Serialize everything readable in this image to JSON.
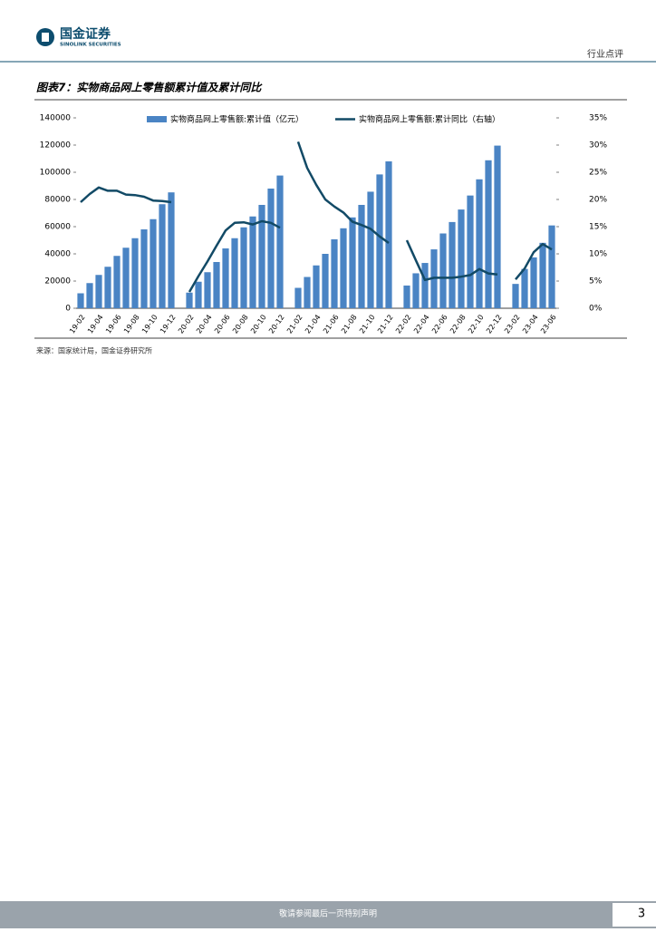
{
  "header": {
    "logo_cn": "国金证券",
    "logo_en": "SINOLINK SECURITIES",
    "section": "行业点评"
  },
  "figure": {
    "title": "图表7：实物商品网上零售额累计值及累计同比",
    "source": "来源：国家统计局，国金证券研究所"
  },
  "chart_data": {
    "type": "combo",
    "legend": "top",
    "categories": [
      "19-02",
      null,
      "19-04",
      null,
      "19-06",
      null,
      "19-08",
      null,
      "19-10",
      null,
      "19-12",
      null,
      "20-02",
      null,
      "20-04",
      null,
      "20-06",
      null,
      "20-08",
      null,
      "20-10",
      null,
      "20-12",
      null,
      "21-02",
      null,
      "21-04",
      null,
      "21-06",
      null,
      "21-08",
      null,
      "21-10",
      null,
      "21-12",
      null,
      "22-02",
      null,
      "22-04",
      null,
      "22-06",
      null,
      "22-08",
      null,
      "22-10",
      null,
      "22-12",
      null,
      "23-02",
      null,
      "23-04",
      null,
      "23-06"
    ],
    "series": [
      {
        "name": "实物商品网上零售额:累计值（亿元）",
        "type": "bar",
        "color": "#4a84c4",
        "values": [
          11000,
          18500,
          24500,
          30500,
          38500,
          44500,
          51500,
          58000,
          65500,
          76500,
          85200,
          null,
          11500,
          19500,
          26500,
          34000,
          44000,
          51500,
          59500,
          67500,
          76000,
          88000,
          97600,
          null,
          15000,
          23000,
          31500,
          40000,
          50700,
          58800,
          66800,
          76000,
          85700,
          98400,
          108000,
          null,
          16700,
          25700,
          33300,
          43300,
          55000,
          63400,
          72600,
          82900,
          94800,
          108800,
          119600,
          null,
          17900,
          28900,
          37400,
          48100,
          60900
        ]
      },
      {
        "name": "实物商品网上零售额:累计同比（右轴）",
        "type": "line",
        "axis": "y2",
        "color": "#124a66",
        "values": [
          19.5,
          21,
          22.2,
          21.6,
          21.6,
          20.9,
          20.8,
          20.5,
          19.8,
          19.7,
          19.5,
          null,
          3,
          5.9,
          8.6,
          11.5,
          14.3,
          15.7,
          15.8,
          15.4,
          16,
          15.7,
          14.8,
          null,
          30.6,
          25.8,
          22.7,
          20,
          18.7,
          17.6,
          15.9,
          15.3,
          14.6,
          13.2,
          12,
          null,
          12.5,
          8.8,
          5.2,
          5.6,
          5.6,
          5.6,
          5.8,
          6.1,
          7.2,
          6.4,
          6.2,
          null,
          5.3,
          7.3,
          10.3,
          11.8,
          10.8
        ]
      }
    ],
    "ylim": [
      0,
      140000
    ],
    "yticks": [
      0,
      20000,
      40000,
      60000,
      80000,
      100000,
      120000,
      140000
    ],
    "y2lim": [
      0,
      35
    ],
    "y2ticks": [
      {
        "value": 0,
        "label": "0%"
      },
      {
        "value": 5,
        "label": "5%"
      },
      {
        "value": 10,
        "label": "10%"
      },
      {
        "value": 15,
        "label": "15%"
      },
      {
        "value": 20,
        "label": "20%"
      },
      {
        "value": 25,
        "label": "25%"
      },
      {
        "value": 30,
        "label": "30%"
      },
      {
        "value": 35,
        "label": "35%"
      }
    ]
  },
  "footer": {
    "notice": "敬请参阅最后一页特别声明",
    "page": 3
  }
}
